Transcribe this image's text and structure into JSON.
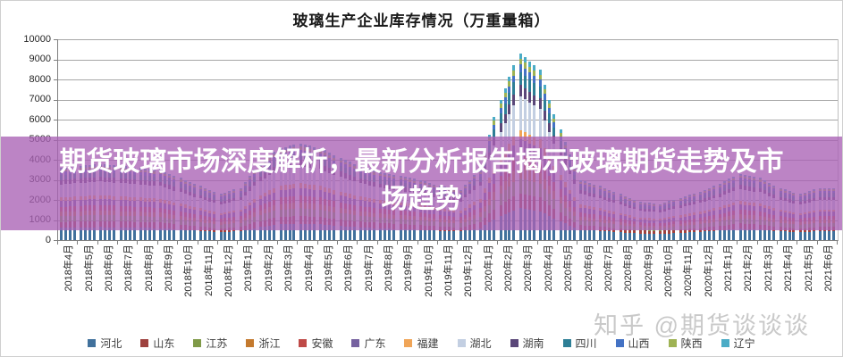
{
  "title": "玻璃生产企业库存情况（万重量箱）",
  "overlay_banner": {
    "text": "期货玻璃市场深度解析，最新分析报告揭示玻璃期货走势及市场趋势",
    "bg_color": "#a961b5",
    "bg_opacity": 0.78,
    "text_color": "#ffffff"
  },
  "watermark": {
    "text": "知乎 @期货谈谈谈",
    "color": "#c9c9c9"
  },
  "chart_data": {
    "type": "bar",
    "stacked": true,
    "title": "玻璃生产企业库存情况（万重量箱）",
    "xlabel": "",
    "ylabel": "",
    "ylim": [
      0,
      10000
    ],
    "ytick_interval": 1000,
    "ytick_labels": [
      "0",
      "1000",
      "2000",
      "3000",
      "4000",
      "5000",
      "6000",
      "7000",
      "8000",
      "9000",
      "10000"
    ],
    "grid": true,
    "legend_position": "bottom",
    "bars_per_month": 4,
    "categories": [
      "2018年4月",
      "2018年5月",
      "2018年6月",
      "2018年7月",
      "2018年8月",
      "2018年9月",
      "2018年10月",
      "2018年11月",
      "2018年12月",
      "2019年1月",
      "2019年2月",
      "2019年3月",
      "2019年4月",
      "2019年5月",
      "2019年6月",
      "2019年7月",
      "2019年8月",
      "2019年9月",
      "2019年10月",
      "2019年11月",
      "2019年12月",
      "2020年1月",
      "2020年2月",
      "2020年3月",
      "2020年4月",
      "2020年5月",
      "2020年6月",
      "2020年7月",
      "2020年8月",
      "2020年9月",
      "2020年10月",
      "2020年11月",
      "2020年12月",
      "2021年1月",
      "2021年2月",
      "2021年3月",
      "2021年4月",
      "2021年5月",
      "2021年6月"
    ],
    "monthly_totals": [
      3600,
      3700,
      3800,
      3700,
      3600,
      3500,
      3100,
      2700,
      2300,
      2600,
      3800,
      4600,
      4800,
      4600,
      4100,
      3700,
      3400,
      3200,
      3000,
      2700,
      2500,
      3500,
      7000,
      9300,
      8500,
      5500,
      3000,
      2700,
      2300,
      1900,
      1800,
      2100,
      2400,
      2800,
      3300,
      3100,
      2600,
      2300,
      2600
    ],
    "provinces": [
      {
        "name": "河北",
        "color": "#41719c",
        "share": 0.17
      },
      {
        "name": "山东",
        "color": "#9e413e",
        "share": 0.08
      },
      {
        "name": "江苏",
        "color": "#7f9a48",
        "share": 0.08
      },
      {
        "name": "浙江",
        "color": "#c47a2e",
        "share": 0.06
      },
      {
        "name": "安徽",
        "color": "#bf4a47",
        "share": 0.07
      },
      {
        "name": "广东",
        "color": "#7662a0",
        "share": 0.08
      },
      {
        "name": "福建",
        "color": "#f0a558",
        "share": 0.05
      },
      {
        "name": "湖北",
        "color": "#c3cfe2",
        "share": 0.18
      },
      {
        "name": "湖南",
        "color": "#5a4779",
        "share": 0.06
      },
      {
        "name": "四川",
        "color": "#2e7f96",
        "share": 0.07
      },
      {
        "name": "山西",
        "color": "#4472c4",
        "share": 0.04
      },
      {
        "name": "陕西",
        "color": "#9fb354",
        "share": 0.03
      },
      {
        "name": "辽宁",
        "color": "#4bacc6",
        "share": 0.03
      }
    ]
  }
}
